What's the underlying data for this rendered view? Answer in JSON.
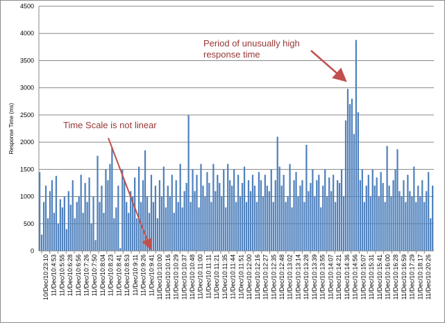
{
  "chart_data": {
    "type": "bar",
    "title": "",
    "xlabel": "",
    "ylabel": "Response Time (ms)",
    "ylim": [
      0,
      4500
    ],
    "yticks": [
      "0",
      "500",
      "1000",
      "1500",
      "2000",
      "2500",
      "3000",
      "3500",
      "4000",
      "4500"
    ],
    "grid": true,
    "legend": "none",
    "series_color": "#4f81bd",
    "xtick_labels": [
      "10/Dec/10:23:10",
      "11/Dec/10:4:53",
      "11/Dec/10:5:55",
      "11/Dec/10:6:28",
      "11/Dec/10:6:56",
      "11/Dec/10:7:26",
      "11/Dec/10:7:50",
      "11/Dec/10:8:04",
      "11/Dec/10:8:23",
      "11/Dec/10:8:41",
      "11/Dec/10:8:53",
      "11/Dec/10:9:11",
      "11/Dec/10:9:26",
      "11/Dec/10:9:41",
      "11/Dec/10:10:00",
      "11/Dec/10:10:16",
      "11/Dec/10:10:29",
      "11/Dec/10:10:37",
      "11/Dec/10:10:48",
      "11/Dec/10:11:00",
      "11/Dec/10:11:11",
      "11/Dec/10:11:21",
      "11/Dec/10:11:35",
      "11/Dec/10:11:44",
      "11/Dec/10:11:51",
      "11/Dec/10:12:00",
      "11/Dec/10:12:16",
      "11/Dec/10:12:27",
      "11/Dec/10:12:35",
      "11/Dec/10:12:48",
      "11/Dec/10:13:02",
      "11/Dec/10:13:14",
      "11/Dec/10:13:28",
      "11/Dec/10:13:39",
      "11/Dec/10:13:55",
      "11/Dec/10:14:07",
      "11/Dec/10:14:21",
      "11/Dec/10:14:36",
      "11/Dec/10:14:56",
      "11/Dec/10:15:07",
      "11/Dec/10:15:31",
      "11/Dec/10:15:41",
      "11/Dec/10:16:00",
      "11/Dec/10:16:28",
      "11/Dec/10:16:59",
      "11/Dec/10:17:29",
      "11/Dec/10:18:17",
      "11/Dec/10:20:26"
    ],
    "values": [
      1450,
      300,
      900,
      1200,
      600,
      1100,
      1300,
      700,
      1380,
      500,
      950,
      800,
      1000,
      400,
      1100,
      850,
      1300,
      600,
      900,
      1000,
      1400,
      700,
      1250,
      900,
      1350,
      500,
      1000,
      200,
      1750,
      900,
      1200,
      700,
      1500,
      1300,
      1600,
      1900,
      600,
      800,
      1200,
      50,
      1500,
      1300,
      900,
      700,
      1100,
      1000,
      1350,
      600,
      1550,
      900,
      1300,
      1850,
      1000,
      700,
      1400,
      900,
      1200,
      600,
      1300,
      1000,
      1550,
      800,
      1200,
      1000,
      1400,
      700,
      1300,
      900,
      1600,
      800,
      1100,
      1250,
      2500,
      900,
      1500,
      1100,
      1400,
      800,
      1600,
      1200,
      1000,
      1450,
      1250,
      900,
      1600,
      1100,
      1400,
      1250,
      1000,
      1500,
      800,
      1600,
      1300,
      1200,
      1500,
      900,
      1400,
      1000,
      1250,
      1550,
      900,
      1300,
      1100,
      1400,
      1200,
      900,
      1450,
      1300,
      1000,
      1400,
      1200,
      1100,
      1500,
      900,
      1300,
      2100,
      1550,
      1200,
      1400,
      900,
      1000,
      1600,
      800,
      1300,
      1450,
      1000,
      1200,
      1300,
      900,
      1950,
      1100,
      1250,
      1500,
      1000,
      1300,
      1400,
      800,
      1200,
      1500,
      1000,
      1350,
      1100,
      1400,
      900,
      1300,
      1250,
      1500,
      1000,
      2400,
      2980,
      2700,
      2800,
      2150,
      3880,
      2550,
      1300,
      1500,
      900,
      1200,
      1400,
      1000,
      1500,
      1200,
      1350,
      1000,
      1450,
      1250,
      900,
      1930,
      1200,
      1000,
      1300,
      1500,
      1870,
      1100,
      1000,
      1300,
      900,
      1400,
      1100,
      1000,
      1550,
      900,
      1200,
      1000,
      1300,
      900,
      1100,
      1450,
      600,
      1200
    ],
    "annotations": [
      "Time Scale is not linear",
      "Period of unusually high response time"
    ]
  }
}
